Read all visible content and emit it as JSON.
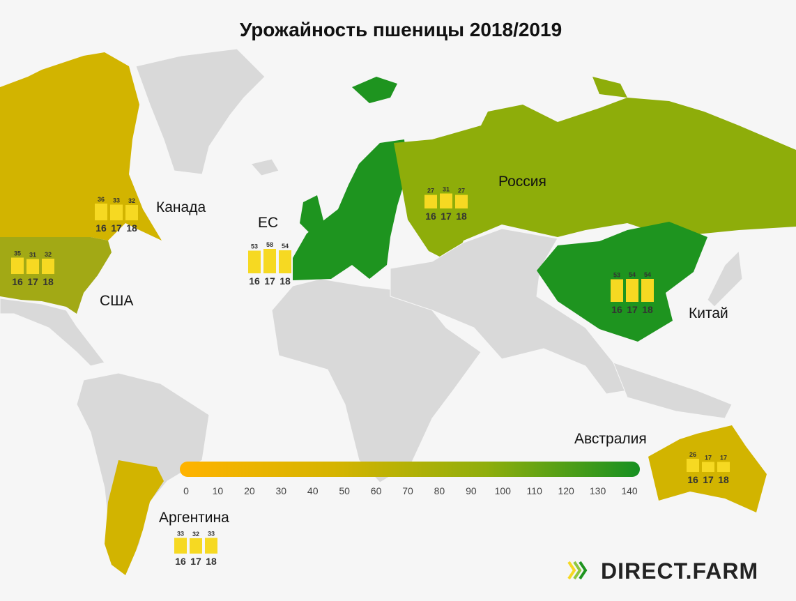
{
  "title": "Урожайность пшеницы 2018/2019",
  "regions": [
    {
      "name": "Канада",
      "years": [
        "16",
        "17",
        "18"
      ],
      "values": [
        36,
        33,
        32
      ]
    },
    {
      "name": "США",
      "years": [
        "16",
        "17",
        "18"
      ],
      "values": [
        35,
        31,
        32
      ]
    },
    {
      "name": "ЕС",
      "years": [
        "16",
        "17",
        "18"
      ],
      "values": [
        53,
        58,
        54
      ]
    },
    {
      "name": "Россия",
      "years": [
        "16",
        "17",
        "18"
      ],
      "values": [
        27,
        31,
        27
      ]
    },
    {
      "name": "Китай",
      "years": [
        "16",
        "17",
        "18"
      ],
      "values": [
        53,
        54,
        54
      ]
    },
    {
      "name": "Австралия",
      "years": [
        "16",
        "17",
        "18"
      ],
      "values": [
        26,
        17,
        17
      ]
    },
    {
      "name": "Аргентина",
      "years": [
        "16",
        "17",
        "18"
      ],
      "values": [
        33,
        32,
        33
      ]
    }
  ],
  "colorbar": {
    "range": [
      0,
      140
    ],
    "ticks": [
      0,
      10,
      20,
      30,
      40,
      50,
      60,
      70,
      80,
      90,
      100,
      110,
      120,
      130,
      140
    ],
    "colors": [
      "#ffb300",
      "#d6b400",
      "#8fae0c",
      "#169021"
    ]
  },
  "bar_color": "#f6d922",
  "logo": "DIRECT.FARM"
}
